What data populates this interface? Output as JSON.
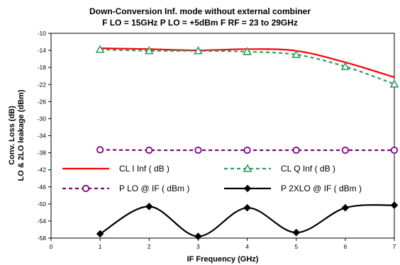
{
  "chart_data": {
    "type": "line",
    "title_lines": [
      "Down-Conversion  Inf. mode without external combiner",
      "F LO = 15GHz P LO = +5dBm F RF = 23 to 29GHz"
    ],
    "xlabel": "IF Frequency (GHz)",
    "ylabel_lines": [
      "Conv. Loss (dB)",
      "LO & 2LO leakage (dBm)"
    ],
    "xlim": [
      0,
      7
    ],
    "ylim": [
      -58,
      -10
    ],
    "x_ticks": [
      "0",
      "1",
      "2",
      "3",
      "4",
      "5",
      "6",
      "7"
    ],
    "y_ticks": [
      "-10",
      "-14",
      "-18",
      "-22",
      "-26",
      "-30",
      "-34",
      "-38",
      "-42",
      "-46",
      "-50",
      "-54",
      "-58"
    ],
    "legend_placement": "inside-lower-middle",
    "series": [
      {
        "name": "CL I Inf ( dB )",
        "color": "#ff0000",
        "line_style": "solid",
        "marker": "none",
        "x": [
          1,
          2,
          3,
          4,
          5,
          6,
          7
        ],
        "values": [
          -13.5,
          -13.7,
          -14.0,
          -13.7,
          -14.1,
          -16.8,
          -20.3
        ]
      },
      {
        "name": "CL Q Inf ( dB )",
        "color": "#339966",
        "line_style": "dashed",
        "marker": "open-triangle",
        "x": [
          1,
          2,
          3,
          4,
          5,
          6,
          7
        ],
        "values": [
          -13.8,
          -14.1,
          -14.1,
          -14.3,
          -15.0,
          -17.8,
          -21.9
        ]
      },
      {
        "name": "P LO @ IF ( dBm )",
        "color": "#800080",
        "line_style": "dashed",
        "marker": "open-circle",
        "x": [
          1,
          2,
          3,
          4,
          5,
          6,
          7
        ],
        "values": [
          -37.3,
          -37.4,
          -37.4,
          -37.4,
          -37.4,
          -37.4,
          -37.4
        ]
      },
      {
        "name": "P 2XLO @ IF ( dBm )",
        "color": "#000000",
        "line_style": "solid",
        "marker": "filled-diamond",
        "x": [
          1,
          2,
          3,
          4,
          5,
          6,
          7
        ],
        "values": [
          -57.0,
          -50.6,
          -57.6,
          -50.9,
          -56.7,
          -50.9,
          -50.3
        ]
      }
    ]
  }
}
